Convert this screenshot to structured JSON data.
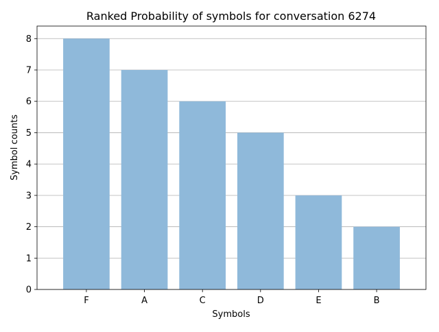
{
  "chart_data": {
    "type": "bar",
    "title": "Ranked Probability of symbols for conversation 6274",
    "xlabel": "Symbols",
    "ylabel": "Symbol counts",
    "categories": [
      "F",
      "A",
      "C",
      "D",
      "E",
      "B"
    ],
    "values": [
      8,
      7,
      6,
      5,
      3,
      2
    ],
    "ylim": [
      0,
      8.4
    ],
    "yticks": [
      0,
      1,
      2,
      3,
      4,
      5,
      6,
      7,
      8
    ],
    "grid": "horizontal",
    "bar_color": "#8fb9da",
    "grid_color": "#b0b0b0"
  }
}
